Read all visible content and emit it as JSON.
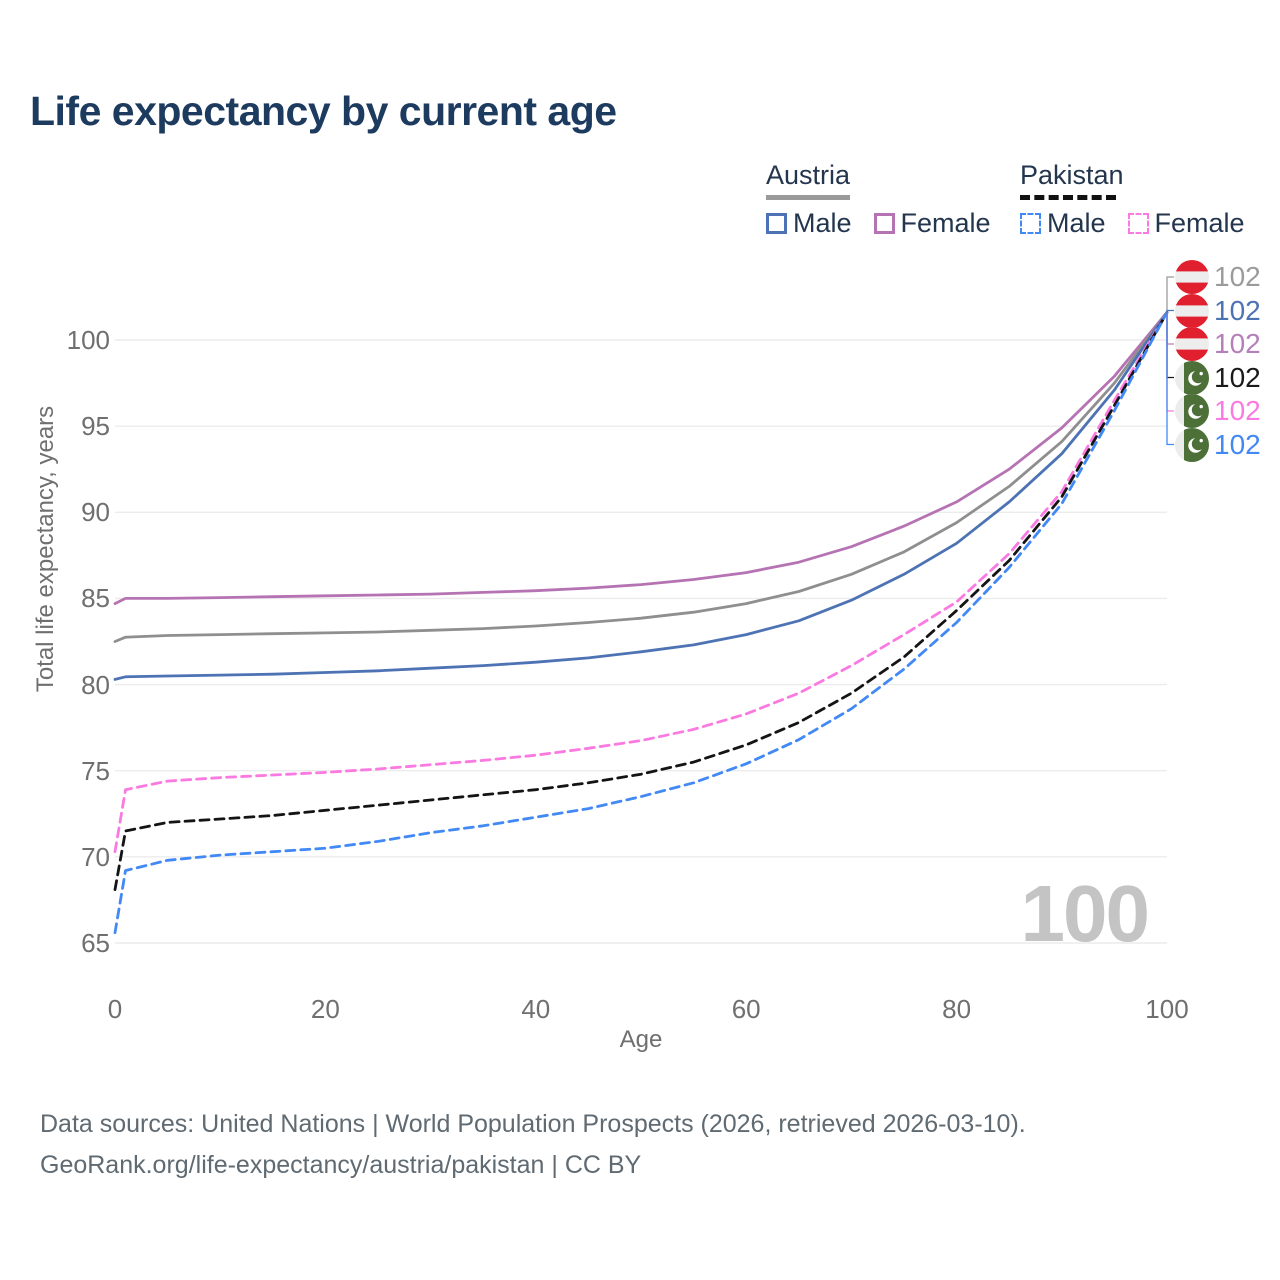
{
  "title": "Life expectancy by current age",
  "watermark_age": "100",
  "legend": {
    "groups": [
      {
        "country": "Austria",
        "line_style": "solid",
        "underline_color": "#9a9a9a",
        "items": [
          {
            "label": "Male",
            "color": "#4d73b4",
            "dashed": false
          },
          {
            "label": "Female",
            "color": "#b673b3",
            "dashed": false
          }
        ]
      },
      {
        "country": "Pakistan",
        "line_style": "dashed",
        "underline_color": "#111111",
        "items": [
          {
            "label": "Male",
            "color": "#4289f5",
            "dashed": true
          },
          {
            "label": "Female",
            "color": "#fb7ae1",
            "dashed": true
          }
        ]
      }
    ]
  },
  "footer": {
    "line1": "Data sources: United Nations | World Population Prospects (2026, retrieved 2026-03-10).",
    "line2": "GeoRank.org/life-expectancy/austria/pakistan | CC BY"
  },
  "chart_data": {
    "type": "line",
    "title": "Life expectancy by current age",
    "xlabel": "Age",
    "ylabel": "Total life expectancy, years",
    "xlim": [
      0,
      100
    ],
    "ylim": [
      65,
      102
    ],
    "x_ticks": [
      0,
      20,
      40,
      60,
      80,
      100
    ],
    "y_ticks": [
      65,
      70,
      75,
      80,
      85,
      90,
      95,
      100
    ],
    "grid": "horizontal",
    "legend_position": "top-right",
    "grid_color": "#ececec",
    "ages": [
      0,
      1,
      5,
      10,
      15,
      20,
      25,
      30,
      35,
      40,
      45,
      50,
      55,
      60,
      65,
      70,
      75,
      80,
      85,
      90,
      95,
      100
    ],
    "series": [
      {
        "name": "Austria Female",
        "country": "Austria",
        "sex": "Female",
        "color": "#b673b3",
        "dashed": false,
        "values": [
          84.7,
          85.0,
          85.0,
          85.05,
          85.1,
          85.15,
          85.2,
          85.25,
          85.35,
          85.45,
          85.6,
          85.8,
          86.1,
          86.5,
          87.1,
          88.0,
          89.2,
          90.6,
          92.5,
          94.9,
          97.9,
          101.6
        ]
      },
      {
        "name": "Austria",
        "country": "Austria",
        "sex": "Both",
        "color": "#8f8f8f",
        "dashed": false,
        "values": [
          82.5,
          82.75,
          82.85,
          82.9,
          82.95,
          83.0,
          83.05,
          83.15,
          83.25,
          83.4,
          83.6,
          83.85,
          84.2,
          84.7,
          85.4,
          86.4,
          87.7,
          89.4,
          91.5,
          94.1,
          97.5,
          101.6
        ]
      },
      {
        "name": "Austria Male",
        "country": "Austria",
        "sex": "Male",
        "color": "#4d73b4",
        "dashed": false,
        "values": [
          80.3,
          80.45,
          80.5,
          80.55,
          80.6,
          80.7,
          80.8,
          80.95,
          81.1,
          81.3,
          81.55,
          81.9,
          82.3,
          82.9,
          83.7,
          84.9,
          86.4,
          88.2,
          90.6,
          93.4,
          97.1,
          101.6
        ]
      },
      {
        "name": "Pakistan Female",
        "country": "Pakistan",
        "sex": "Female",
        "color": "#fb7ae1",
        "dashed": true,
        "values": [
          70.3,
          73.9,
          74.4,
          74.6,
          74.75,
          74.9,
          75.1,
          75.35,
          75.6,
          75.9,
          76.3,
          76.75,
          77.4,
          78.3,
          79.5,
          81.1,
          82.9,
          84.8,
          87.6,
          91.2,
          96.5,
          101.6
        ]
      },
      {
        "name": "Pakistan",
        "country": "Pakistan",
        "sex": "Both",
        "color": "#141414",
        "dashed": true,
        "values": [
          68.1,
          71.5,
          72.0,
          72.2,
          72.4,
          72.7,
          73.0,
          73.3,
          73.6,
          73.9,
          74.3,
          74.8,
          75.5,
          76.5,
          77.8,
          79.5,
          81.6,
          84.3,
          87.2,
          90.9,
          96.2,
          101.6
        ]
      },
      {
        "name": "Pakistan Male",
        "country": "Pakistan",
        "sex": "Male",
        "color": "#4289f5",
        "dashed": true,
        "values": [
          65.6,
          69.2,
          69.8,
          70.1,
          70.3,
          70.5,
          70.9,
          71.4,
          71.8,
          72.3,
          72.8,
          73.5,
          74.3,
          75.4,
          76.8,
          78.6,
          80.9,
          83.6,
          86.8,
          90.5,
          95.9,
          101.6
        ]
      }
    ],
    "end_labels": [
      {
        "flag": "austria",
        "value": "102",
        "color": "#9b9b9b"
      },
      {
        "flag": "austria",
        "value": "102",
        "color": "#4d73b4"
      },
      {
        "flag": "austria",
        "value": "102",
        "color": "#b57fba"
      },
      {
        "flag": "pakistan",
        "value": "102",
        "color": "#1a1a1a"
      },
      {
        "flag": "pakistan",
        "value": "102",
        "color": "#fb7ae1"
      },
      {
        "flag": "pakistan",
        "value": "102",
        "color": "#4289f5"
      }
    ],
    "flag_colors": {
      "austria_red": "#e0202f",
      "austria_white": "#ededed",
      "pakistan_green": "#4c7038",
      "pakistan_white": "#ececec"
    }
  }
}
